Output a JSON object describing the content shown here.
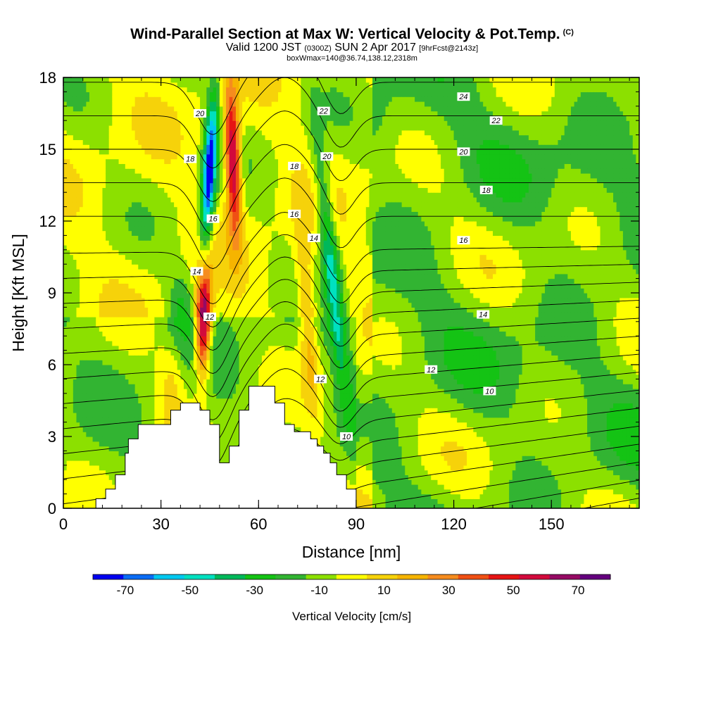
{
  "title": {
    "main": "Wind-Parallel Section at Max W: Vertical Velocity & Pot.Temp.",
    "copyright": "(C)",
    "valid_prefix": "Valid 1200 JST",
    "utc": "(0300Z)",
    "date": "SUN 2 Apr 2017",
    "forecast": "[9hrFcst@2143z]",
    "box": "boxWmax=140@36.74,138.12,2318m"
  },
  "chart_data": {
    "type": "heatmap",
    "xlabel": "Distance [nm]",
    "ylabel": "Height [Kft MSL]",
    "xlim": [
      0,
      177
    ],
    "ylim": [
      0,
      18
    ],
    "x_ticks": [
      "0",
      "30",
      "60",
      "90",
      "120",
      "150"
    ],
    "y_ticks": [
      "0",
      "3",
      "6",
      "9",
      "12",
      "15",
      "18"
    ],
    "colorbar": {
      "label": "Vertical Velocity [cm/s]",
      "tick_labels": [
        "-70",
        "-50",
        "-30",
        "-10",
        "10",
        "30",
        "50",
        "70"
      ],
      "bins": [
        -80,
        -70,
        -60,
        -50,
        -40,
        -30,
        -20,
        -10,
        0,
        10,
        20,
        30,
        40,
        50,
        60,
        70,
        80
      ],
      "colors": [
        "#0000f0",
        "#0a6cf5",
        "#00c8f0",
        "#00e0c0",
        "#00b85a",
        "#14c314",
        "#32b432",
        "#8ce000",
        "#ffff00",
        "#f6d20a",
        "#f6b400",
        "#f68c1e",
        "#f05014",
        "#e61414",
        "#d20a3c",
        "#960a64",
        "#64007e"
      ]
    },
    "theta_contours": [
      {
        "value": 10,
        "labels": [
          [
            131,
            4.9
          ],
          [
            87,
            3
          ]
        ]
      },
      {
        "value": 12,
        "labels": [
          [
            113,
            5.8
          ],
          [
            45,
            8
          ],
          [
            79,
            5.4
          ]
        ]
      },
      {
        "value": 14,
        "labels": [
          [
            129,
            8.1
          ],
          [
            41,
            9.9
          ],
          [
            77,
            11.3
          ]
        ]
      },
      {
        "value": 16,
        "labels": [
          [
            123,
            11.2
          ],
          [
            46,
            12.1
          ],
          [
            71,
            12.3
          ]
        ]
      },
      {
        "value": 18,
        "labels": [
          [
            130,
            13.3
          ],
          [
            39,
            14.6
          ],
          [
            71,
            14.3
          ]
        ]
      },
      {
        "value": 20,
        "labels": [
          [
            123,
            14.9
          ],
          [
            42,
            16.5
          ],
          [
            81,
            14.7
          ]
        ]
      },
      {
        "value": 22,
        "labels": [
          [
            133,
            16.2
          ],
          [
            80,
            16.6
          ]
        ]
      },
      {
        "value": 24,
        "labels": [
          [
            123,
            17.2
          ]
        ]
      }
    ],
    "terrain": [
      [
        10,
        0
      ],
      [
        10,
        0.4
      ],
      [
        13,
        0.4
      ],
      [
        13,
        0.8
      ],
      [
        16,
        0.8
      ],
      [
        16,
        1.4
      ],
      [
        19,
        1.4
      ],
      [
        19,
        2.3
      ],
      [
        20,
        2.3
      ],
      [
        20,
        2.9
      ],
      [
        23,
        2.9
      ],
      [
        23,
        3.5
      ],
      [
        33,
        3.5
      ],
      [
        33,
        4.1
      ],
      [
        36,
        4.1
      ],
      [
        36,
        4.4
      ],
      [
        42,
        4.4
      ],
      [
        42,
        4.1
      ],
      [
        45,
        4.1
      ],
      [
        45,
        3.5
      ],
      [
        48,
        3.5
      ],
      [
        48,
        1.9
      ],
      [
        51,
        1.9
      ],
      [
        51,
        2.6
      ],
      [
        54,
        2.6
      ],
      [
        54,
        4.1
      ],
      [
        57,
        4.1
      ],
      [
        57,
        5.1
      ],
      [
        65,
        5.1
      ],
      [
        65,
        4.4
      ],
      [
        68,
        4.4
      ],
      [
        68,
        3.5
      ],
      [
        71,
        3.5
      ],
      [
        71,
        3.2
      ],
      [
        76,
        3.2
      ],
      [
        76,
        2.9
      ],
      [
        78,
        2.9
      ],
      [
        78,
        2.6
      ],
      [
        80,
        2.6
      ],
      [
        80,
        2.3
      ],
      [
        82,
        2.3
      ],
      [
        82,
        1.9
      ],
      [
        84,
        1.9
      ],
      [
        84,
        1.4
      ],
      [
        87,
        1.4
      ],
      [
        87,
        0.8
      ],
      [
        90,
        0.8
      ],
      [
        90,
        0
      ]
    ]
  }
}
